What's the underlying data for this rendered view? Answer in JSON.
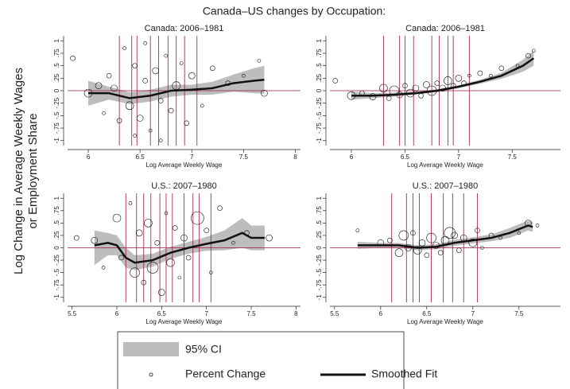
{
  "title": "Canada–US changes by Occupation:",
  "ylabel": [
    "Log Change in Average Weekly Wages",
    "or Employment Share"
  ],
  "legend": [
    "95% CI",
    "Percent Change",
    "Smoothed Fit"
  ],
  "chart_data": [
    {
      "type": "scatter",
      "title": "Canada: 2006–1981",
      "xlabel": "Log Average Weekly Wage",
      "xlim": [
        5.8,
        8.05
      ],
      "xticks": [
        6,
        6.5,
        7,
        7.5,
        8
      ],
      "ylim": [
        -1.1,
        1.1
      ],
      "yticks": [
        -1,
        {
          "value": -0.75,
          "label": "-.75"
        },
        {
          "value": -0.5,
          "label": "-.5"
        },
        {
          "value": -0.25,
          "label": "-.25"
        },
        {
          "value": 0,
          "label": "0"
        },
        {
          "value": 0.25,
          "label": ".25"
        },
        {
          "value": 0.5,
          "label": ".5"
        },
        {
          "value": 0.75,
          "label": ".75"
        },
        1
      ],
      "hline": 0,
      "vlines": [
        6.3,
        6.42,
        6.47,
        6.6,
        6.68,
        6.77,
        6.85,
        6.93,
        7.05
      ],
      "x": [
        5.85,
        6.0,
        6.1,
        6.15,
        6.2,
        6.25,
        6.3,
        6.35,
        6.4,
        6.45,
        6.5,
        6.55,
        6.6,
        6.65,
        6.7,
        6.75,
        6.8,
        6.85,
        6.9,
        6.95,
        7.0,
        7.1,
        7.2,
        7.35,
        7.5,
        7.65,
        7.7,
        6.45,
        6.55,
        6.7
      ],
      "values": [
        0.65,
        -0.05,
        0.1,
        -0.45,
        0.3,
        0.05,
        -0.6,
        0.85,
        -0.3,
        0.5,
        -0.55,
        0.2,
        -0.8,
        0.4,
        -0.2,
        0.7,
        -0.4,
        0.1,
        0.55,
        -0.65,
        0.3,
        -0.3,
        0.45,
        0.15,
        0.3,
        0.6,
        -0.05,
        -0.9,
        0.95,
        -1.0
      ],
      "sizes": [
        3,
        5,
        4,
        2,
        3,
        4,
        3,
        2,
        5,
        3,
        4,
        3,
        2,
        4,
        3,
        2,
        3,
        5,
        2,
        3,
        4,
        2,
        3,
        3,
        2,
        2,
        4,
        2,
        2,
        2
      ],
      "fit_x": [
        6.0,
        6.2,
        6.4,
        6.6,
        6.8,
        7.0,
        7.2,
        7.4,
        7.6,
        7.7
      ],
      "fit": [
        -0.05,
        -0.05,
        -0.15,
        -0.1,
        0.0,
        0.02,
        0.05,
        0.15,
        0.2,
        0.22
      ],
      "ci_upper": [
        0.2,
        0.08,
        -0.03,
        0.02,
        0.12,
        0.12,
        0.18,
        0.32,
        0.45,
        0.5
      ],
      "ci_lower": [
        -0.3,
        -0.18,
        -0.27,
        -0.22,
        -0.12,
        -0.08,
        -0.08,
        -0.02,
        -0.05,
        -0.06
      ]
    },
    {
      "type": "scatter",
      "title": "Canada: 2006–1981",
      "xlabel": "Log Average Weekly Wage",
      "xlim": [
        5.8,
        7.95
      ],
      "xticks": [
        6,
        6.5,
        7,
        7.5
      ],
      "ylim": [
        -1.1,
        1.1
      ],
      "yticks": [
        -1,
        {
          "value": -0.75,
          "label": "-.75"
        },
        {
          "value": -0.5,
          "label": "-.5"
        },
        {
          "value": -0.25,
          "label": "-.25"
        },
        {
          "value": 0,
          "label": "0"
        },
        {
          "value": 0.25,
          "label": ".25"
        },
        {
          "value": 0.5,
          "label": ".5"
        },
        {
          "value": 0.75,
          "label": ".75"
        },
        1
      ],
      "hline": 0,
      "vlines": [
        6.3,
        6.45,
        6.5,
        6.58,
        6.75,
        6.82,
        6.9,
        6.95,
        7.1
      ],
      "x": [
        5.85,
        6.0,
        6.1,
        6.2,
        6.3,
        6.35,
        6.4,
        6.45,
        6.5,
        6.55,
        6.6,
        6.65,
        6.7,
        6.75,
        6.8,
        6.85,
        6.9,
        6.95,
        7.0,
        7.05,
        7.1,
        7.2,
        7.3,
        7.4,
        7.55,
        7.65,
        7.7
      ],
      "values": [
        0.2,
        -0.1,
        -0.05,
        -0.12,
        0.05,
        -0.15,
        0.0,
        -0.08,
        0.1,
        -0.05,
        0.05,
        -0.1,
        0.12,
        0.0,
        0.15,
        0.05,
        0.2,
        0.1,
        0.25,
        0.15,
        0.3,
        0.35,
        0.3,
        0.45,
        0.5,
        0.7,
        0.8
      ],
      "sizes": [
        3,
        5,
        3,
        4,
        5,
        3,
        6,
        4,
        3,
        5,
        4,
        3,
        4,
        6,
        3,
        4,
        5,
        3,
        4,
        3,
        2,
        3,
        2,
        3,
        2,
        3,
        2
      ],
      "fit_x": [
        6.0,
        6.2,
        6.4,
        6.6,
        6.8,
        7.0,
        7.2,
        7.4,
        7.6,
        7.7
      ],
      "fit": [
        -0.1,
        -0.1,
        -0.08,
        -0.05,
        0.0,
        0.08,
        0.18,
        0.3,
        0.5,
        0.65
      ],
      "ci_upper": [
        -0.02,
        -0.05,
        -0.04,
        -0.02,
        0.03,
        0.11,
        0.22,
        0.36,
        0.62,
        0.8
      ],
      "ci_lower": [
        -0.18,
        -0.15,
        -0.12,
        -0.08,
        -0.03,
        0.05,
        0.14,
        0.24,
        0.38,
        0.5
      ]
    },
    {
      "type": "scatter",
      "title": "U.S.: 2007–1980",
      "xlabel": "Log Average Weekly Wage",
      "xlim": [
        5.45,
        8.05
      ],
      "xticks": [
        5.5,
        6,
        6.5,
        7,
        7.5,
        8
      ],
      "ylim": [
        -1.1,
        1.1
      ],
      "yticks": [
        -1,
        {
          "value": -0.75,
          "label": "-.75"
        },
        {
          "value": -0.5,
          "label": "-.5"
        },
        {
          "value": -0.25,
          "label": "-.25"
        },
        {
          "value": 0,
          "label": "0"
        },
        {
          "value": 0.25,
          "label": ".25"
        },
        {
          "value": 0.5,
          "label": ".5"
        },
        {
          "value": 0.75,
          "label": ".75"
        },
        1
      ],
      "hline": 0,
      "vlines": [
        6.1,
        6.22,
        6.3,
        6.38,
        6.48,
        6.55,
        6.62,
        6.75,
        6.85,
        6.92,
        7.05
      ],
      "x": [
        5.55,
        5.75,
        5.85,
        6.0,
        6.05,
        6.15,
        6.2,
        6.25,
        6.3,
        6.35,
        6.4,
        6.45,
        6.5,
        6.55,
        6.6,
        6.65,
        6.7,
        6.75,
        6.8,
        6.9,
        7.0,
        7.05,
        7.15,
        7.3,
        7.45,
        7.7
      ],
      "values": [
        0.2,
        0.15,
        -0.4,
        0.6,
        -0.2,
        0.9,
        -0.5,
        0.3,
        -0.7,
        0.5,
        -0.4,
        0.1,
        -0.9,
        0.7,
        -0.3,
        0.4,
        -0.6,
        0.2,
        -0.2,
        0.6,
        0.35,
        -0.5,
        0.8,
        0.1,
        0.3,
        0.2
      ],
      "sizes": [
        3,
        4,
        2,
        5,
        3,
        2,
        6,
        4,
        3,
        5,
        7,
        3,
        4,
        2,
        5,
        3,
        2,
        4,
        3,
        8,
        3,
        2,
        3,
        2,
        3,
        4
      ],
      "fit_x": [
        5.75,
        5.9,
        6.0,
        6.1,
        6.2,
        6.4,
        6.6,
        6.8,
        7.0,
        7.2,
        7.4,
        7.5,
        7.65
      ],
      "fit": [
        0.05,
        0.1,
        0.05,
        -0.2,
        -0.3,
        -0.25,
        -0.1,
        0.0,
        0.08,
        0.15,
        0.3,
        0.2,
        0.2
      ],
      "ci_upper": [
        0.35,
        0.3,
        0.25,
        0.0,
        -0.15,
        -0.12,
        0.02,
        0.12,
        0.22,
        0.35,
        0.6,
        0.45,
        0.45
      ],
      "ci_lower": [
        -0.35,
        -0.15,
        -0.15,
        -0.4,
        -0.45,
        -0.38,
        -0.22,
        -0.12,
        -0.06,
        -0.05,
        0.0,
        -0.05,
        -0.05
      ]
    },
    {
      "type": "scatter",
      "title": "U.S.: 2007–1980",
      "xlabel": "Log Average Weekly Wage",
      "xlim": [
        5.45,
        7.95
      ],
      "xticks": [
        5.5,
        6,
        6.5,
        7,
        7.5
      ],
      "ylim": [
        -1.1,
        1.1
      ],
      "yticks": [
        -1,
        {
          "value": -0.75,
          "label": "-.75"
        },
        {
          "value": -0.5,
          "label": "-.5"
        },
        {
          "value": -0.25,
          "label": "-.25"
        },
        {
          "value": 0,
          "label": "0"
        },
        {
          "value": 0.25,
          "label": ".25"
        },
        {
          "value": 0.5,
          "label": ".5"
        },
        {
          "value": 0.75,
          "label": ".75"
        },
        1
      ],
      "hline": 0,
      "vlines": [
        6.12,
        6.28,
        6.35,
        6.42,
        6.55,
        6.68,
        6.78,
        6.9,
        7.05
      ],
      "x": [
        5.75,
        6.0,
        6.1,
        6.2,
        6.25,
        6.3,
        6.35,
        6.4,
        6.45,
        6.5,
        6.55,
        6.6,
        6.65,
        6.7,
        6.75,
        6.8,
        6.85,
        6.9,
        7.0,
        7.05,
        7.1,
        7.2,
        7.3,
        7.5,
        7.6,
        7.7
      ],
      "values": [
        0.35,
        0.1,
        0.15,
        -0.1,
        0.25,
        0.0,
        0.3,
        -0.05,
        0.1,
        -0.15,
        0.2,
        0.05,
        -0.1,
        0.15,
        0.3,
        0.25,
        -0.05,
        0.2,
        0.1,
        0.35,
        0.0,
        0.25,
        0.2,
        0.3,
        0.5,
        0.45
      ],
      "sizes": [
        2,
        4,
        3,
        5,
        6,
        4,
        3,
        5,
        4,
        3,
        6,
        4,
        3,
        5,
        7,
        4,
        3,
        4,
        5,
        3,
        2,
        3,
        2,
        2,
        4,
        2
      ],
      "fit_x": [
        5.75,
        6.0,
        6.2,
        6.4,
        6.6,
        6.8,
        7.0,
        7.2,
        7.4,
        7.6,
        7.65
      ],
      "fit": [
        0.05,
        0.05,
        0.05,
        0.0,
        0.02,
        0.1,
        0.15,
        0.2,
        0.3,
        0.45,
        0.42
      ],
      "ci_upper": [
        0.12,
        0.1,
        0.1,
        0.05,
        0.07,
        0.16,
        0.21,
        0.27,
        0.4,
        0.55,
        0.52
      ],
      "ci_lower": [
        -0.02,
        0.0,
        0.0,
        -0.05,
        -0.03,
        0.04,
        0.09,
        0.13,
        0.2,
        0.35,
        0.32
      ]
    }
  ]
}
